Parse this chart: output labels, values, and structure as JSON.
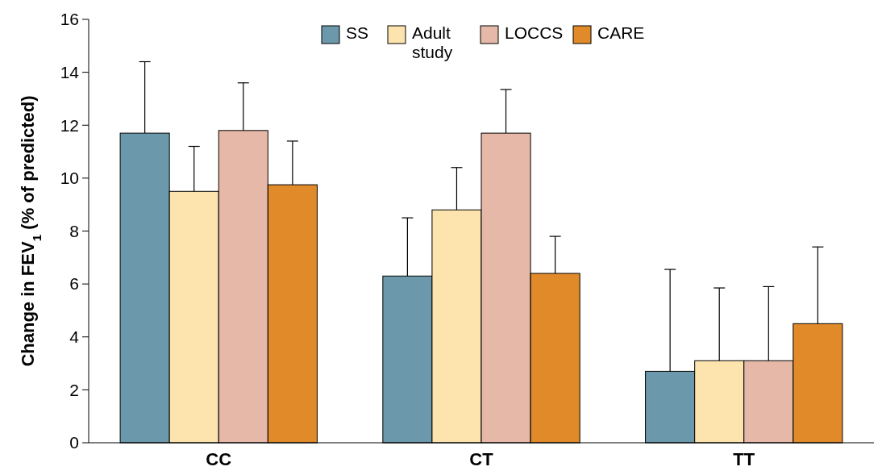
{
  "chart_data": {
    "type": "bar",
    "ylabel": "Change in FEV$_{1}$ (% of predicted)",
    "categories": [
      "CC",
      "CT",
      "TT"
    ],
    "series": [
      {
        "name": "SS",
        "color": "#6b98ab",
        "values": [
          11.7,
          6.3,
          2.7
        ],
        "errors": [
          [
            11.7,
            14.4
          ],
          [
            6.3,
            8.5
          ],
          [
            2.7,
            6.55
          ]
        ]
      },
      {
        "name": "Adult study",
        "color": "#fde3ad",
        "values": [
          9.5,
          8.8,
          3.1
        ],
        "errors": [
          [
            9.5,
            11.2
          ],
          [
            8.8,
            10.4
          ],
          [
            3.1,
            5.85
          ]
        ]
      },
      {
        "name": "LOCCS",
        "color": "#e5b8a8",
        "values": [
          11.8,
          11.7,
          3.1
        ],
        "errors": [
          [
            11.8,
            13.6
          ],
          [
            11.7,
            13.35
          ],
          [
            3.1,
            5.9
          ]
        ]
      },
      {
        "name": "CARE",
        "color": "#e08a2a",
        "values": [
          9.75,
          6.4,
          4.5
        ],
        "errors": [
          [
            9.75,
            11.4
          ],
          [
            6.4,
            7.8
          ],
          [
            4.5,
            7.4
          ]
        ]
      }
    ],
    "ylim": [
      0,
      16
    ],
    "yticks": [
      0,
      2,
      4,
      6,
      8,
      10,
      12,
      14,
      16
    ],
    "legend": "top",
    "grid": false
  }
}
